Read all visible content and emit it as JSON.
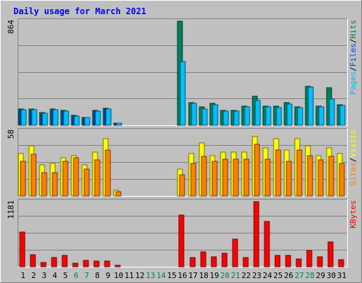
{
  "title": "Daily usage for March 2021",
  "colors": {
    "background": "#c0c0c0",
    "plot": "#c0c0c0",
    "title": "#0000ff",
    "hits": "#00805c",
    "files": "#0040ff",
    "pages": "#00c0ff",
    "visits": "#ffff00",
    "sites": "#ff8000",
    "kbytes": "#ff0000",
    "weekday_label": "#000000",
    "weekend_label": "#00805c"
  },
  "chart_data": [
    {
      "type": "bar",
      "panel": "hits",
      "ymax_label": "864",
      "ylim": [
        0,
        864
      ],
      "legend": [
        {
          "text": "Pages",
          "color": "#00c0ff"
        },
        {
          "text": "/",
          "color": "#000000"
        },
        {
          "text": "Files",
          "color": "#0040ff"
        },
        {
          "text": "/",
          "color": "#000000"
        },
        {
          "text": "Hits",
          "color": "#00805c"
        }
      ],
      "categories": [
        "1",
        "2",
        "3",
        "4",
        "5",
        "6",
        "7",
        "8",
        "9",
        "10",
        "11",
        "12",
        "13",
        "14",
        "15",
        "16",
        "17",
        "18",
        "19",
        "20",
        "21",
        "22",
        "23",
        "24",
        "25",
        "26",
        "27",
        "28",
        "29",
        "30",
        "31"
      ],
      "series": [
        {
          "name": "Hits",
          "color": "#00805c",
          "values": [
            135,
            135,
            107,
            135,
            124,
            84,
            67,
            124,
            141,
            17,
            0,
            0,
            0,
            0,
            0,
            864,
            186,
            152,
            180,
            124,
            124,
            158,
            242,
            158,
            158,
            186,
            152,
            321,
            158,
            310,
            169
          ]
        },
        {
          "name": "Files",
          "color": "#0040ff",
          "values": [
            124,
            124,
            96,
            124,
            118,
            78,
            62,
            118,
            135,
            12,
            0,
            0,
            0,
            0,
            0,
            0,
            0,
            0,
            0,
            0,
            0,
            0,
            0,
            0,
            0,
            0,
            0,
            0,
            0,
            0,
            0
          ]
        },
        {
          "name": "Pages",
          "color": "#00c0ff",
          "values": [
            129,
            129,
            101,
            129,
            118,
            79,
            62,
            118,
            135,
            17,
            0,
            0,
            0,
            0,
            0,
            529,
            180,
            135,
            169,
            118,
            118,
            152,
            208,
            152,
            146,
            175,
            146,
            315,
            152,
            220,
            163
          ]
        }
      ]
    },
    {
      "type": "bar",
      "panel": "visits",
      "ymax_label": "58",
      "ylim": [
        0,
        58
      ],
      "legend": [
        {
          "text": "Sites",
          "color": "#ff8000"
        },
        {
          "text": "/",
          "color": "#000000"
        },
        {
          "text": "Visits",
          "color": "#ffff00"
        }
      ],
      "categories": [
        "1",
        "2",
        "3",
        "4",
        "5",
        "6",
        "7",
        "8",
        "9",
        "10",
        "11",
        "12",
        "13",
        "14",
        "15",
        "16",
        "17",
        "18",
        "19",
        "20",
        "21",
        "22",
        "23",
        "24",
        "25",
        "26",
        "27",
        "28",
        "29",
        "30",
        "31"
      ],
      "series": [
        {
          "name": "Visits",
          "color": "#ffff00",
          "values": [
            38,
            45,
            28,
            29,
            34,
            36,
            28,
            39,
            51,
            5,
            0,
            0,
            0,
            0,
            0,
            24,
            38,
            47,
            36,
            39,
            39,
            39,
            53,
            43,
            51,
            41,
            51,
            45,
            36,
            43,
            38
          ]
        },
        {
          "name": "Sites",
          "color": "#ff8000",
          "values": [
            31,
            37,
            21,
            21,
            31,
            34,
            24,
            32,
            41,
            4,
            0,
            0,
            0,
            0,
            0,
            19,
            29,
            35,
            31,
            33,
            33,
            33,
            46,
            33,
            41,
            31,
            41,
            36,
            32,
            35,
            29
          ]
        }
      ]
    },
    {
      "type": "bar",
      "panel": "kbytes",
      "ymax_label": "1181",
      "ylim": [
        0,
        1181
      ],
      "legend": [
        {
          "text": "KBytes",
          "color": "#ff0000"
        }
      ],
      "categories": [
        "1",
        "2",
        "3",
        "4",
        "5",
        "6",
        "7",
        "8",
        "9",
        "10",
        "11",
        "12",
        "13",
        "14",
        "15",
        "16",
        "17",
        "18",
        "19",
        "20",
        "21",
        "22",
        "23",
        "24",
        "25",
        "26",
        "27",
        "28",
        "29",
        "30",
        "31"
      ],
      "series": [
        {
          "name": "KBytes",
          "color": "#ff0000",
          "values": [
            630,
            216,
            83,
            166,
            203,
            66,
            116,
            100,
            108,
            25,
            0,
            0,
            0,
            0,
            0,
            941,
            166,
            266,
            183,
            249,
            506,
            166,
            1181,
            822,
            208,
            208,
            141,
            290,
            183,
            448,
            133
          ]
        }
      ]
    }
  ],
  "x_axis": {
    "labels": [
      {
        "text": "1",
        "weekend": false
      },
      {
        "text": "2",
        "weekend": false
      },
      {
        "text": "3",
        "weekend": false
      },
      {
        "text": "4",
        "weekend": false
      },
      {
        "text": "5",
        "weekend": false
      },
      {
        "text": "6",
        "weekend": true
      },
      {
        "text": "7",
        "weekend": true
      },
      {
        "text": "8",
        "weekend": false
      },
      {
        "text": "9",
        "weekend": false
      },
      {
        "text": "10",
        "weekend": false
      },
      {
        "text": "11",
        "weekend": false
      },
      {
        "text": "12",
        "weekend": false
      },
      {
        "text": "13",
        "weekend": true
      },
      {
        "text": "14",
        "weekend": true
      },
      {
        "text": "15",
        "weekend": false
      },
      {
        "text": "16",
        "weekend": false
      },
      {
        "text": "17",
        "weekend": false
      },
      {
        "text": "18",
        "weekend": false
      },
      {
        "text": "19",
        "weekend": false
      },
      {
        "text": "20",
        "weekend": true
      },
      {
        "text": "21",
        "weekend": true
      },
      {
        "text": "22",
        "weekend": false
      },
      {
        "text": "23",
        "weekend": false
      },
      {
        "text": "24",
        "weekend": false
      },
      {
        "text": "25",
        "weekend": false
      },
      {
        "text": "26",
        "weekend": false
      },
      {
        "text": "27",
        "weekend": true
      },
      {
        "text": "28",
        "weekend": true
      },
      {
        "text": "29",
        "weekend": false
      },
      {
        "text": "30",
        "weekend": false
      },
      {
        "text": "31",
        "weekend": false
      }
    ]
  }
}
